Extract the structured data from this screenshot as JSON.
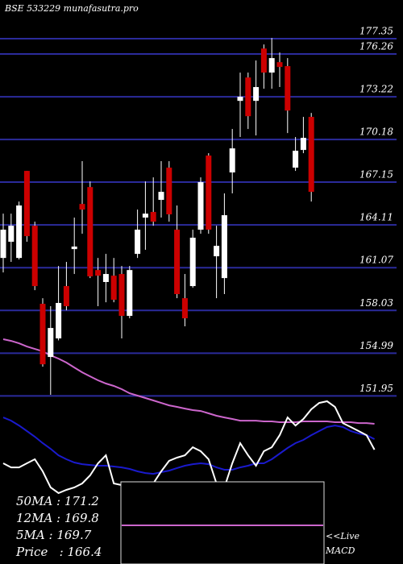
{
  "chart_data": {
    "type": "candlestick",
    "title": "BSE 533229 munafasutra.pro",
    "categories": [
      null,
      null,
      null,
      null,
      null,
      null,
      null,
      null,
      null,
      null,
      null,
      null,
      null,
      null,
      null,
      null,
      null,
      null,
      null,
      null,
      null,
      null,
      null,
      null,
      null,
      null,
      null,
      null,
      null,
      null,
      null,
      null,
      null,
      null,
      null,
      null,
      null,
      null,
      null,
      null,
      null,
      null,
      null,
      null,
      null,
      null,
      null,
      null
    ],
    "open": [
      161.76,
      162.91,
      161.76,
      167.95,
      164.05,
      158.5,
      154.72,
      156.04,
      159.76,
      162.39,
      165.6,
      166.8,
      160.9,
      160.05,
      160.5,
      160.62,
      157.64,
      162.05,
      164.63,
      165.03,
      165.89,
      168.18,
      163.77,
      158.9,
      159.76,
      163.77,
      169.04,
      161.88,
      160.33,
      167.84,
      172.93,
      174.59,
      172.93,
      176.65,
      174.94,
      175.68,
      175.4,
      168.18,
      169.44,
      171.79,
      null,
      null,
      null,
      null,
      null,
      null,
      null,
      null
    ],
    "high": [
      164.91,
      164.91,
      165.77,
      167.95,
      164.34,
      158.9,
      158.33,
      161.19,
      161.48,
      164.63,
      168.64,
      167.2,
      161.76,
      162.05,
      161.76,
      161.19,
      161.19,
      165.2,
      167.2,
      167.49,
      168.64,
      168.64,
      165.49,
      160.62,
      163.77,
      167.49,
      169.21,
      164.05,
      166.35,
      170.93,
      174.94,
      174.94,
      175.8,
      176.94,
      177.4,
      176.37,
      175.97,
      170.36,
      171.79,
      172.07,
      null,
      null,
      null,
      null,
      null,
      null,
      null,
      null
    ],
    "low": [
      160.73,
      161.48,
      161.65,
      162.91,
      159.47,
      154.03,
      152.03,
      155.9,
      158.04,
      160.62,
      163.48,
      160.33,
      158.33,
      158.61,
      158.61,
      156.04,
      157.47,
      161.76,
      162.34,
      164.05,
      164.63,
      164.34,
      158.9,
      156.9,
      159.64,
      163.48,
      163.48,
      158.9,
      159.19,
      166.35,
      170.36,
      170.93,
      170.47,
      173.79,
      173.79,
      173.91,
      170.64,
      167.95,
      169.21,
      165.77,
      null,
      null,
      null,
      null,
      null,
      null,
      null,
      null
    ],
    "close": [
      163.77,
      164.05,
      165.49,
      163.31,
      159.76,
      154.2,
      156.78,
      158.56,
      158.33,
      162.57,
      165.2,
      160.45,
      160.5,
      160.62,
      158.79,
      157.64,
      160.9,
      163.77,
      164.91,
      164.34,
      166.46,
      164.86,
      159.19,
      157.47,
      163.2,
      167.15,
      163.77,
      162.62,
      164.8,
      169.55,
      173.22,
      171.84,
      173.91,
      174.94,
      175.97,
      175.34,
      172.24,
      169.38,
      170.3,
      166.46,
      null,
      null,
      null,
      null,
      null,
      null,
      null,
      null
    ],
    "up_color": "#ffffff",
    "down_color": "#cc0000",
    "series": [
      {
        "color": "#cc66cc",
        "values": [
          155.98,
          155.86,
          155.69,
          155.46,
          155.29,
          155.12,
          154.83,
          154.6,
          154.32,
          153.97,
          153.63,
          153.34,
          153.06,
          152.83,
          152.66,
          152.43,
          152.14,
          151.97,
          151.8,
          151.63,
          151.45,
          151.28,
          151.17,
          151.05,
          150.94,
          150.88,
          150.71,
          150.54,
          150.42,
          150.31,
          150.19,
          150.19,
          150.19,
          150.14,
          150.14,
          150.08,
          150.08,
          150.08,
          150.14,
          150.14,
          150.14,
          150.14,
          150.08,
          150.08,
          150.08,
          150.02,
          150.02,
          149.97
        ]
      },
      {
        "color": "#1a1acc",
        "values": [
          150.42,
          150.19,
          149.85,
          149.45,
          149.05,
          148.59,
          148.19,
          147.73,
          147.45,
          147.22,
          147.1,
          147.04,
          146.99,
          146.99,
          146.93,
          146.87,
          146.76,
          146.59,
          146.47,
          146.41,
          146.53,
          146.64,
          146.82,
          146.99,
          147.1,
          147.16,
          147.1,
          146.87,
          146.7,
          146.7,
          146.87,
          146.99,
          147.16,
          147.16,
          147.45,
          147.85,
          148.25,
          148.59,
          148.82,
          149.16,
          149.45,
          149.74,
          149.85,
          149.74,
          149.45,
          149.28,
          149.16,
          148.88
        ]
      },
      {
        "color": "#ffffff",
        "values": [
          147.16,
          146.87,
          146.87,
          147.16,
          147.45,
          146.59,
          145.44,
          145.04,
          145.27,
          145.44,
          145.73,
          146.3,
          147.16,
          147.73,
          145.73,
          145.61,
          145.73,
          145.61,
          145.73,
          145.73,
          146.59,
          147.33,
          147.56,
          147.73,
          148.3,
          148.02,
          147.45,
          145.73,
          145.44,
          147.16,
          148.59,
          147.73,
          146.99,
          148.02,
          148.3,
          149.16,
          150.42,
          149.85,
          150.31,
          151.0,
          151.45,
          151.57,
          151.17,
          150.02,
          149.74,
          149.45,
          149.16,
          148.13
        ]
      }
    ],
    "ylim": [
      140,
      180.1
    ],
    "yticks": [
      151.95,
      154.99,
      158.03,
      161.07,
      164.11,
      167.15,
      170.18,
      173.22,
      176.26,
      177.35
    ],
    "grid": true,
    "grid_color": "#2b2b9b",
    "annotations": [
      "50MA : 171.2",
      "12MA : 169.8",
      "5MA : 169.7",
      "Price   : 166.4"
    ],
    "macd_labels": [
      "<<Live",
      "MACD"
    ]
  }
}
